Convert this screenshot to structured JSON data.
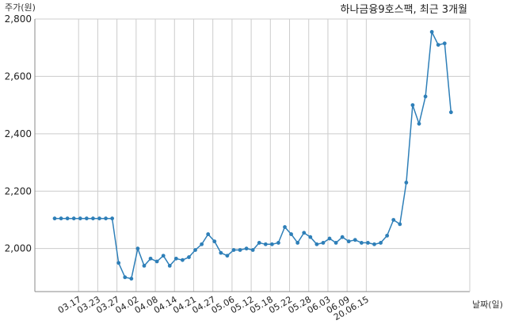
{
  "chart_data": {
    "type": "line",
    "title": "하나금융9호스팩, 최근 3개월",
    "ylabel": "주가(원)",
    "xlabel": "날짜(일)",
    "ylim": [
      1850,
      2800
    ],
    "yticks": [
      2000,
      2200,
      2400,
      2600,
      2800
    ],
    "ytick_labels": [
      "2,000",
      "2,200",
      "2,400",
      "2,600",
      "2,800"
    ],
    "xtick_labels": [
      "03.17",
      "03.23",
      "03.27",
      "04.02",
      "04.08",
      "04.14",
      "04.21",
      "04.27",
      "05.06",
      "05.12",
      "05.18",
      "05.22",
      "05.28",
      "06.03",
      "06.09",
      "20.06.15"
    ],
    "grid": true,
    "color": "#2e7fb8",
    "series": [
      {
        "values": [
          2105,
          2105,
          2105,
          2105,
          2105,
          2105,
          2105,
          2105,
          2105,
          2105,
          1950,
          1900,
          1895,
          2000,
          1940,
          1965,
          1955,
          1975,
          1940,
          1965,
          1960,
          1970,
          1995,
          2015,
          2050,
          2025,
          1985,
          1975,
          1995,
          1995,
          2000,
          1995,
          2020,
          2015,
          2015,
          2020,
          2075,
          2050,
          2020,
          2055,
          2040,
          2015,
          2020,
          2035,
          2020,
          2040,
          2025,
          2030,
          2020,
          2020,
          2015,
          2020,
          2045,
          2100,
          2085,
          2230,
          2500,
          2435,
          2530,
          2755,
          2710,
          2715,
          2475
        ]
      }
    ]
  }
}
